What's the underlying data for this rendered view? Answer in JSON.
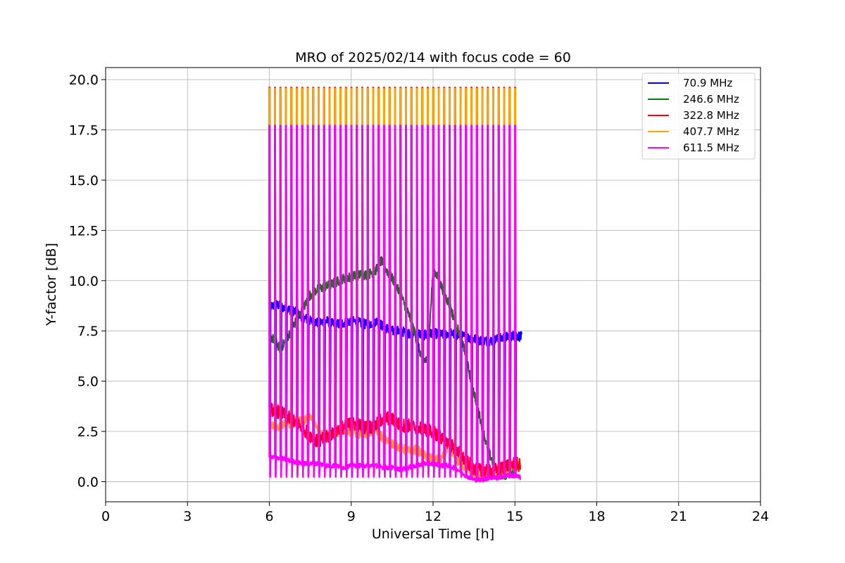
{
  "chart_data": {
    "type": "line",
    "title": "MRO of 2025/02/14 with focus code = 60",
    "xlabel": "Universal Time [h]",
    "ylabel": "Y-factor [dB]",
    "xlim": [
      0,
      24
    ],
    "ylim": [
      -1.0,
      20.6
    ],
    "xticks": [
      0,
      3,
      6,
      9,
      12,
      15,
      18,
      21,
      24
    ],
    "yticks": [
      0.0,
      2.5,
      5.0,
      7.5,
      10.0,
      12.5,
      15.0,
      17.5,
      20.0
    ],
    "ytick_labels": [
      "0.0",
      "2.5",
      "5.0",
      "7.5",
      "10.0",
      "12.5",
      "15.0",
      "17.5",
      "20.0"
    ],
    "grid": true,
    "legend_position": "top-right",
    "calibration_spikes": {
      "start_time": 6.0,
      "end_time": 15.1,
      "interval_h": 0.2,
      "peak_values": {
        "70.9 MHz": 17.7,
        "246.6 MHz": 19.5,
        "322.8 MHz": 19.6,
        "407.7 MHz": 19.55,
        "611.5 MHz": 17.7
      },
      "dip_values": {
        "70.9 MHz": 0.3,
        "611.5 MHz": 0.2
      }
    },
    "series": [
      {
        "name": " 70.9 MHz",
        "color": "#0000ff",
        "x": [
          6.0,
          6.3,
          6.6,
          6.9,
          7.2,
          7.5,
          7.8,
          8.1,
          8.4,
          8.7,
          9.0,
          9.3,
          9.6,
          9.9,
          10.2,
          10.5,
          10.8,
          11.1,
          11.4,
          11.7,
          12.0,
          12.3,
          12.6,
          12.9,
          13.2,
          13.5,
          13.8,
          14.1,
          14.4,
          14.7,
          15.0,
          15.25
        ],
        "y": [
          8.7,
          8.8,
          8.6,
          8.5,
          8.2,
          8.0,
          7.9,
          8.0,
          7.8,
          7.9,
          8.0,
          7.9,
          7.8,
          8.0,
          7.7,
          7.5,
          7.5,
          7.4,
          7.4,
          7.3,
          7.4,
          7.3,
          7.4,
          7.3,
          7.2,
          7.1,
          7.0,
          7.0,
          7.1,
          7.2,
          7.3,
          7.2
        ]
      },
      {
        "name": "246.6 MHz",
        "color": "#008000",
        "x": [
          6.0,
          6.2,
          6.4,
          6.6,
          6.9,
          7.2,
          7.5,
          7.8,
          8.1,
          8.4,
          8.7,
          9.0,
          9.3,
          9.6,
          9.9,
          10.1,
          10.3,
          10.6,
          10.9,
          11.2,
          11.4,
          11.6,
          11.8,
          12.0,
          12.2,
          12.4,
          12.6,
          12.8,
          13.1,
          13.4,
          13.7,
          14.0,
          14.3,
          14.6,
          14.9,
          15.2
        ],
        "y": [
          7.3,
          7.0,
          6.6,
          7.0,
          7.8,
          8.5,
          9.3,
          9.6,
          9.7,
          9.9,
          10.1,
          10.2,
          10.3,
          10.3,
          10.5,
          11.0,
          10.5,
          9.9,
          9.0,
          8.0,
          7.0,
          6.1,
          6.0,
          10.6,
          10.1,
          9.4,
          8.8,
          8.0,
          6.8,
          5.0,
          3.3,
          1.6,
          0.6,
          0.3,
          0.6,
          0.8
        ]
      },
      {
        "name": "322.8 MHz",
        "color": "#ff0000",
        "x": [
          6.0,
          6.3,
          6.6,
          6.9,
          7.2,
          7.5,
          7.8,
          8.1,
          8.4,
          8.7,
          9.0,
          9.3,
          9.6,
          9.9,
          10.2,
          10.5,
          10.8,
          11.1,
          11.4,
          11.7,
          12.0,
          12.3,
          12.6,
          12.9,
          13.2,
          13.5,
          13.8,
          14.1,
          14.4,
          14.7,
          15.0,
          15.2
        ],
        "y": [
          3.6,
          3.5,
          3.3,
          3.0,
          2.7,
          2.3,
          2.0,
          2.2,
          2.5,
          2.7,
          2.9,
          2.8,
          2.7,
          2.8,
          3.2,
          3.1,
          2.8,
          2.8,
          2.7,
          2.6,
          2.5,
          2.2,
          1.9,
          1.5,
          1.0,
          0.7,
          0.5,
          0.5,
          0.6,
          0.8,
          0.9,
          0.8
        ]
      },
      {
        "name": "407.7 MHz",
        "color": "#ffa500",
        "x": [
          6.0,
          6.3,
          6.6,
          6.9,
          7.2,
          7.5,
          7.8,
          8.1,
          8.4,
          8.7,
          9.0,
          9.3,
          9.6,
          9.9,
          10.2,
          10.5,
          10.8,
          11.1,
          11.4,
          11.7,
          12.0,
          12.3,
          12.6,
          12.9,
          13.2,
          13.5,
          13.8,
          14.1,
          14.4,
          14.7,
          15.0,
          15.2
        ],
        "y": [
          2.8,
          2.7,
          2.9,
          2.9,
          3.0,
          3.3,
          2.5,
          2.3,
          2.4,
          2.6,
          2.5,
          2.4,
          2.4,
          2.6,
          2.1,
          1.9,
          1.7,
          1.5,
          1.6,
          1.3,
          1.1,
          1.1,
          1.7,
          1.0,
          0.7,
          0.4,
          0.3,
          0.4,
          0.5,
          0.6,
          0.8,
          0.7
        ]
      },
      {
        "name": "611.5 MHz",
        "color": "#ff00ff",
        "x": [
          6.0,
          6.3,
          6.6,
          6.9,
          7.2,
          7.5,
          7.8,
          8.1,
          8.4,
          8.7,
          9.0,
          9.3,
          9.6,
          9.9,
          10.2,
          10.5,
          10.8,
          11.1,
          11.4,
          11.7,
          12.0,
          12.3,
          12.6,
          12.9,
          13.2,
          13.5,
          13.8,
          14.1,
          14.4,
          14.7,
          15.0,
          15.2
        ],
        "y": [
          1.2,
          1.2,
          1.1,
          1.0,
          0.9,
          0.9,
          0.9,
          0.8,
          0.8,
          0.7,
          0.8,
          0.8,
          0.8,
          0.8,
          0.7,
          0.7,
          0.6,
          0.7,
          0.8,
          0.9,
          0.9,
          0.8,
          0.8,
          0.6,
          0.3,
          0.1,
          0.1,
          0.2,
          0.2,
          0.3,
          0.3,
          0.2
        ]
      }
    ]
  }
}
